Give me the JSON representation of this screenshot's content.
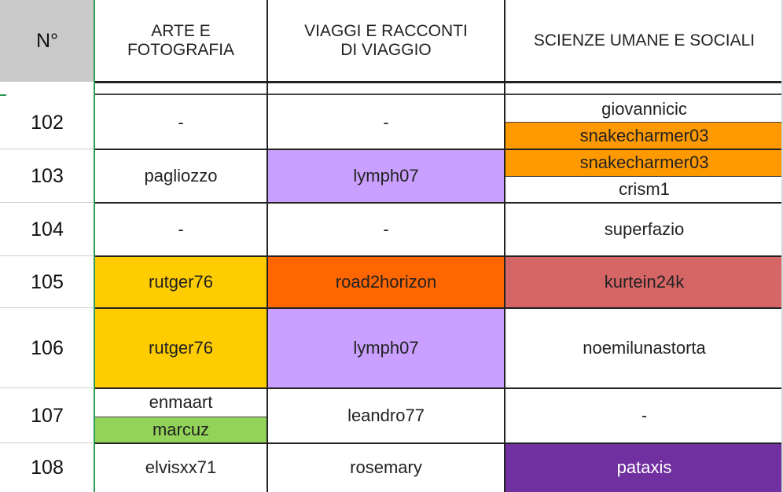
{
  "colors": {
    "header_number_bg": "#c9c9c9",
    "orange_light": "#ff9900",
    "purple_light": "#c9a0ff",
    "yellow": "#ffcc00",
    "orange_dark": "#ff6600",
    "red": "#d66666",
    "green": "#93d35a",
    "purple_dark": "#7030a0"
  },
  "headers": {
    "number": "N°",
    "col1": "ARTE E\nFOTOGRAFIA",
    "col2": "VIAGGI E RACCONTI\nDI VIAGGIO",
    "col3": "SCIENZE UMANE E SOCIALI"
  },
  "rows": [
    {
      "number": "102",
      "col1": "-",
      "col2": "-",
      "col3_top": "giovannicic",
      "col3_bottom": "snakecharmer03"
    },
    {
      "number": "103",
      "col1": "pagliozzo",
      "col2": "lymph07",
      "col3_top": "snakecharmer03",
      "col3_bottom": "crism1"
    },
    {
      "number": "104",
      "col1": "-",
      "col2": "-",
      "col3": "superfazio"
    },
    {
      "number": "105",
      "col1": "rutger76",
      "col2": "road2horizon",
      "col3": "kurtein24k"
    },
    {
      "number": "106",
      "col1": "rutger76",
      "col2": "lymph07",
      "col3": "noemilunastorta"
    },
    {
      "number": "107",
      "col1_top": "enmaart",
      "col1_bottom": "marcuz",
      "col2": "leandro77",
      "col3": "-"
    },
    {
      "number": "108",
      "col1": "elvisxx71",
      "col2": "rosemary",
      "col3": "pataxis"
    }
  ]
}
